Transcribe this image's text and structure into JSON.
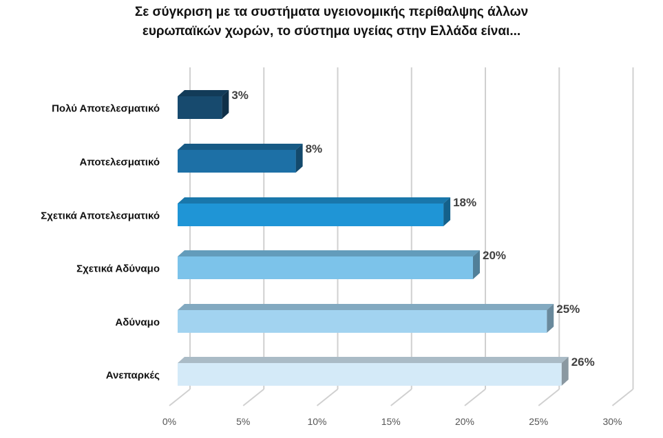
{
  "chart_data": {
    "type": "bar",
    "orientation": "horizontal",
    "title_line1": "Σε σύγκριση με τα συστήματα υγειονομικής περίθαλψης άλλων",
    "title_line2": "ευρωπαϊκών χωρών, το σύστημα υγείας στην Ελλάδα είναι...",
    "categories": [
      "Πολύ Αποτελεσματικό",
      "Αποτελεσματικό",
      "Σχετικά Αποτελεσματικό",
      "Σχετικά Αδύναμο",
      "Αδύναμο",
      "Ανεπαρκές"
    ],
    "values": [
      3,
      8,
      18,
      20,
      25,
      26
    ],
    "data_labels": [
      "3%",
      "8%",
      "18%",
      "20%",
      "25%",
      "26%"
    ],
    "colors": [
      "#174a6e",
      "#1d70a6",
      "#1f95d6",
      "#7cc3ea",
      "#a2d3f0",
      "#d4eaf8"
    ],
    "xlim": [
      0,
      30
    ],
    "xticks": [
      0,
      5,
      10,
      15,
      20,
      25,
      30
    ],
    "xtick_labels": [
      "0%",
      "5%",
      "10%",
      "15%",
      "20%",
      "25%",
      "30%"
    ],
    "grid": true
  }
}
